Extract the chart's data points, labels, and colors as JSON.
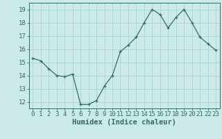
{
  "x": [
    0,
    1,
    2,
    3,
    4,
    5,
    6,
    7,
    8,
    9,
    10,
    11,
    12,
    13,
    14,
    15,
    16,
    17,
    18,
    19,
    20,
    21,
    22,
    23
  ],
  "y": [
    15.3,
    15.1,
    14.5,
    14.0,
    13.9,
    14.1,
    11.8,
    11.8,
    12.1,
    13.2,
    14.0,
    15.8,
    16.3,
    16.9,
    18.0,
    19.0,
    18.6,
    17.6,
    18.4,
    19.0,
    18.0,
    16.9,
    16.4,
    15.9
  ],
  "line_color": "#2e6e62",
  "marker": "+",
  "marker_size": 3,
  "bg_color": "#cceae7",
  "grid_color": "#aad4d0",
  "xlabel": "Humidex (Indice chaleur)",
  "ylabel_ticks": [
    12,
    13,
    14,
    15,
    16,
    17,
    18,
    19
  ],
  "xtick_labels": [
    "0",
    "1",
    "2",
    "3",
    "4",
    "5",
    "6",
    "7",
    "8",
    "9",
    "10",
    "11",
    "12",
    "13",
    "14",
    "15",
    "16",
    "17",
    "18",
    "19",
    "20",
    "21",
    "22",
    "23"
  ],
  "xlim": [
    -0.5,
    23.5
  ],
  "ylim": [
    11.5,
    19.5
  ],
  "xlabel_fontsize": 7.5,
  "tick_fontsize": 6.5
}
